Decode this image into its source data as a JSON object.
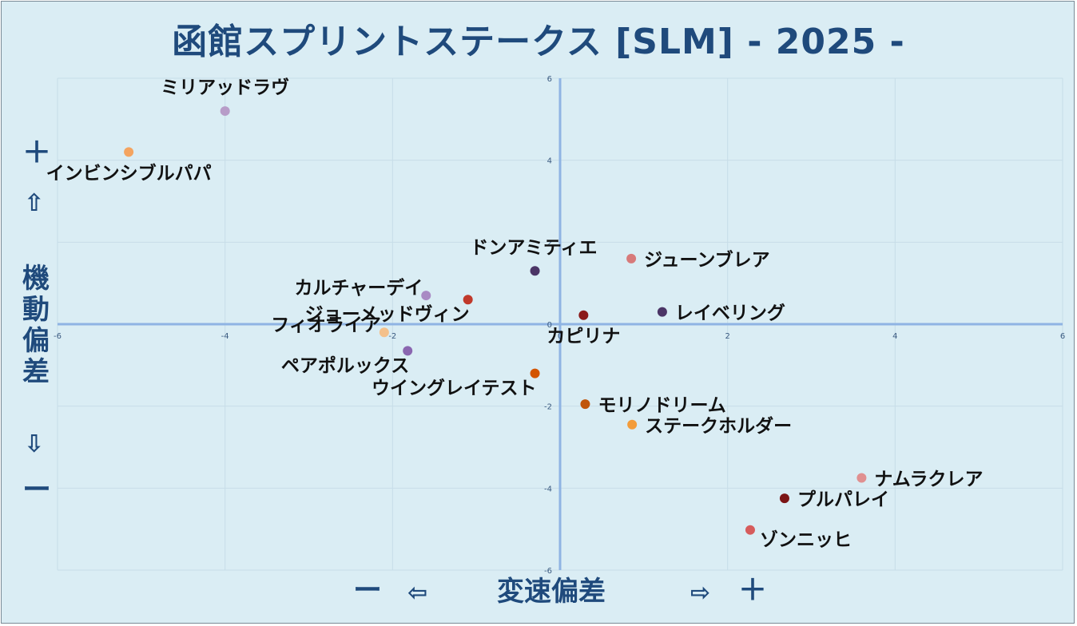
{
  "title": "函館スプリントステークス [SLM]  - 2025 -",
  "axis_labels": {
    "y_plus": "＋",
    "y_up": "⇧",
    "y_title": [
      "機",
      "動",
      "偏",
      "差"
    ],
    "y_down": "⇩",
    "y_minus": "ー",
    "x_minus": "ー",
    "x_left": "⇦",
    "x_title": "変速偏差",
    "x_right": "⇨",
    "x_plus": "＋"
  },
  "chart_data": {
    "type": "scatter",
    "title": "函館スプリントステークス [SLM]  - 2025 -",
    "xlabel": "変速偏差",
    "ylabel": "機動偏差",
    "xlim": [
      -6,
      6
    ],
    "ylim": [
      -6,
      6
    ],
    "x_ticks": [
      -6,
      -4,
      -2,
      0,
      2,
      4,
      6
    ],
    "y_ticks": [
      -6,
      -4,
      -2,
      0,
      2,
      4,
      6
    ],
    "x_tick_labels": [
      "-6",
      "-4",
      "-2",
      "0",
      "2",
      "4",
      "6"
    ],
    "y_tick_labels": [
      "-6",
      "-4",
      "-2",
      "0",
      "2",
      "4",
      "6"
    ],
    "grid": true,
    "points": [
      {
        "label": "ミリアッドラヴ",
        "x": -4.0,
        "y": 5.2,
        "color": "#b79cc8",
        "label_pos": "above"
      },
      {
        "label": "インビンシブルパパ",
        "x": -5.15,
        "y": 4.2,
        "color": "#f4a460",
        "label_pos": "below"
      },
      {
        "label": "ドンアミティエ",
        "x": -0.3,
        "y": 1.3,
        "color": "#4b3566",
        "label_pos": "above-left"
      },
      {
        "label": "ジューンブレア",
        "x": 0.85,
        "y": 1.6,
        "color": "#d77a7a",
        "label_pos": "right"
      },
      {
        "label": "カルチャーデイ",
        "x": -1.6,
        "y": 0.7,
        "color": "#a98ac4",
        "label_pos": "left"
      },
      {
        "label": "ジョーメッドヴィン",
        "x": -1.1,
        "y": 0.6,
        "color": "#c0392b",
        "label_pos": "below-left"
      },
      {
        "label": "レイベリング",
        "x": 1.22,
        "y": 0.3,
        "color": "#4b3566",
        "label_pos": "right"
      },
      {
        "label": "カピリナ",
        "x": 0.28,
        "y": 0.22,
        "color": "#8b1a1a",
        "label_pos": "below"
      },
      {
        "label": "フィオライア",
        "x": -2.1,
        "y": -0.2,
        "color": "#f4c08a",
        "label_pos": "left"
      },
      {
        "label": "ペアポルックス",
        "x": -1.82,
        "y": -0.65,
        "color": "#8a66b0",
        "label_pos": "below-left"
      },
      {
        "label": "ウイングレイテスト",
        "x": -0.3,
        "y": -1.2,
        "color": "#d35400",
        "label_pos": "below-left"
      },
      {
        "label": "モリノドリーム",
        "x": 0.3,
        "y": -1.95,
        "color": "#c0550a",
        "label_pos": "right"
      },
      {
        "label": "ステークホルダー",
        "x": 0.86,
        "y": -2.45,
        "color": "#f39c3a",
        "label_pos": "right"
      },
      {
        "label": "ナムラクレア",
        "x": 3.6,
        "y": -3.75,
        "color": "#e09090",
        "label_pos": "right"
      },
      {
        "label": "プルパレイ",
        "x": 2.68,
        "y": -4.25,
        "color": "#7b1515",
        "label_pos": "right"
      },
      {
        "label": "ゾンニッヒ",
        "x": 2.27,
        "y": -5.02,
        "color": "#d65c5c",
        "label_pos": "below-right"
      }
    ]
  }
}
